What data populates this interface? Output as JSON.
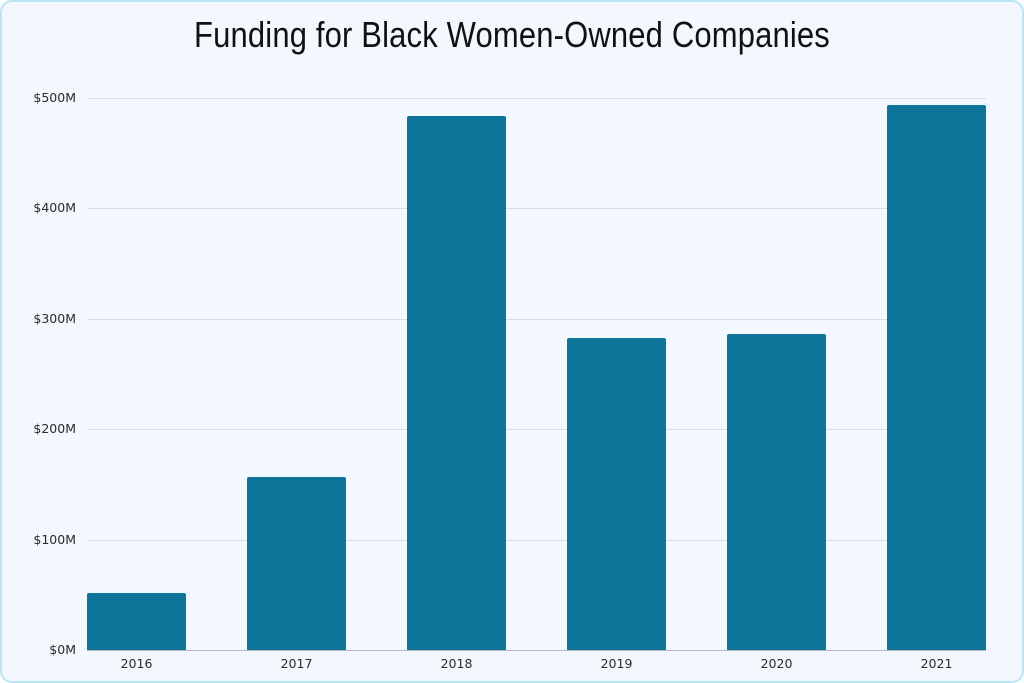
{
  "chart_data": {
    "type": "bar",
    "title": "Funding for Black Women-Owned Companies",
    "xlabel": "",
    "ylabel": "",
    "categories": [
      "2016",
      "2017",
      "2018",
      "2019",
      "2020",
      "2021"
    ],
    "values": [
      52,
      157,
      484,
      283,
      286,
      494
    ],
    "unit": "$M",
    "ylim": [
      0,
      500
    ],
    "yticks": [
      0,
      100,
      200,
      300,
      400,
      500
    ],
    "ytick_labels": [
      "$0M",
      "$100M",
      "$200M",
      "$300M",
      "$400M",
      "$500M"
    ],
    "grid": true,
    "legend": null,
    "bar_color": "#0c7599"
  },
  "colors": {
    "background": "#f3f8fe",
    "border": "#b9e6f5",
    "bar": "#0c7599",
    "gridline": "#d9dee4"
  }
}
